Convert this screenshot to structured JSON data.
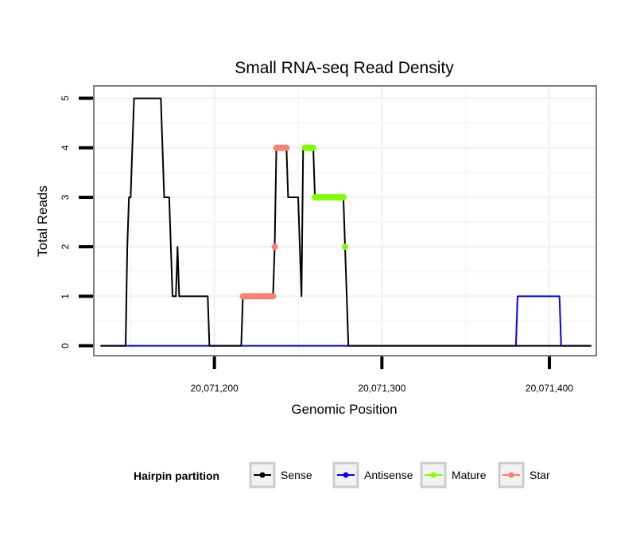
{
  "chart_data": {
    "type": "line",
    "title": "Small RNA-seq Read Density",
    "xlabel": "Genomic Position",
    "ylabel": "Total Reads",
    "xlim": [
      20071128,
      20071428
    ],
    "ylim": [
      -0.2,
      5.25
    ],
    "xticks": [
      20071200,
      20071300,
      20071400
    ],
    "xtick_labels": [
      "20,071,200",
      "20,071,300",
      "20,071,400"
    ],
    "yticks": [
      0,
      1,
      2,
      3,
      4,
      5
    ],
    "ytick_labels": [
      "0",
      "1",
      "2",
      "3",
      "4",
      "5"
    ],
    "grid": true,
    "legend": {
      "title": "Hairpin partition",
      "position": "bottom",
      "entries": [
        {
          "label": "Sense",
          "color": "#000000"
        },
        {
          "label": "Antisense",
          "color": "#0000ff"
        },
        {
          "label": "Mature",
          "color": "#7fff00"
        },
        {
          "label": "Star",
          "color": "#fa8072"
        }
      ]
    },
    "series": [
      {
        "name": "Sense",
        "color": "#000000",
        "points": [
          [
            20071132,
            0
          ],
          [
            20071147,
            0
          ],
          [
            20071148,
            2
          ],
          [
            20071149,
            3
          ],
          [
            20071150,
            3
          ],
          [
            20071152,
            5
          ],
          [
            20071168,
            5
          ],
          [
            20071170,
            3
          ],
          [
            20071173,
            3
          ],
          [
            20071175,
            1
          ],
          [
            20071177,
            1
          ],
          [
            20071178,
            2
          ],
          [
            20071179,
            1
          ],
          [
            20071196,
            1
          ],
          [
            20071197,
            0
          ],
          [
            20071216,
            0
          ],
          [
            20071217,
            1
          ],
          [
            20071235,
            1
          ],
          [
            20071236,
            2
          ],
          [
            20071237,
            4
          ],
          [
            20071243,
            4
          ],
          [
            20071244,
            3
          ],
          [
            20071250,
            3
          ],
          [
            20071252,
            1
          ],
          [
            20071253,
            4
          ],
          [
            20071259,
            4
          ],
          [
            20071260,
            3
          ],
          [
            20071277,
            3
          ],
          [
            20071278,
            2
          ],
          [
            20071280,
            0
          ],
          [
            20071425,
            0
          ]
        ]
      },
      {
        "name": "Antisense",
        "color": "#0000ff",
        "points": [
          [
            20071132,
            0
          ],
          [
            20071380,
            0
          ],
          [
            20071381,
            1
          ],
          [
            20071406,
            1
          ],
          [
            20071407,
            0
          ],
          [
            20071425,
            0
          ]
        ]
      },
      {
        "name": "Mature",
        "color": "#7fff00",
        "points": [
          [
            20071254,
            4
          ],
          [
            20071255,
            4
          ],
          [
            20071256,
            4
          ],
          [
            20071257,
            4
          ],
          [
            20071258,
            4
          ],
          [
            20071259,
            4
          ],
          [
            20071260,
            3
          ],
          [
            20071261,
            3
          ],
          [
            20071262,
            3
          ],
          [
            20071263,
            3
          ],
          [
            20071264,
            3
          ],
          [
            20071265,
            3
          ],
          [
            20071266,
            3
          ],
          [
            20071267,
            3
          ],
          [
            20071268,
            3
          ],
          [
            20071269,
            3
          ],
          [
            20071270,
            3
          ],
          [
            20071271,
            3
          ],
          [
            20071272,
            3
          ],
          [
            20071273,
            3
          ],
          [
            20071274,
            3
          ],
          [
            20071275,
            3
          ],
          [
            20071276,
            3
          ],
          [
            20071277,
            3
          ],
          [
            20071278,
            2
          ]
        ]
      },
      {
        "name": "Star",
        "color": "#fa8072",
        "points": [
          [
            20071217,
            1
          ],
          [
            20071218,
            1
          ],
          [
            20071219,
            1
          ],
          [
            20071220,
            1
          ],
          [
            20071221,
            1
          ],
          [
            20071222,
            1
          ],
          [
            20071223,
            1
          ],
          [
            20071224,
            1
          ],
          [
            20071225,
            1
          ],
          [
            20071226,
            1
          ],
          [
            20071227,
            1
          ],
          [
            20071228,
            1
          ],
          [
            20071229,
            1
          ],
          [
            20071230,
            1
          ],
          [
            20071231,
            1
          ],
          [
            20071232,
            1
          ],
          [
            20071233,
            1
          ],
          [
            20071234,
            1
          ],
          [
            20071235,
            1
          ],
          [
            20071236,
            2
          ],
          [
            20071237,
            4
          ],
          [
            20071238,
            4
          ],
          [
            20071239,
            4
          ],
          [
            20071240,
            4
          ],
          [
            20071241,
            4
          ],
          [
            20071242,
            4
          ],
          [
            20071243,
            4
          ]
        ]
      }
    ]
  }
}
